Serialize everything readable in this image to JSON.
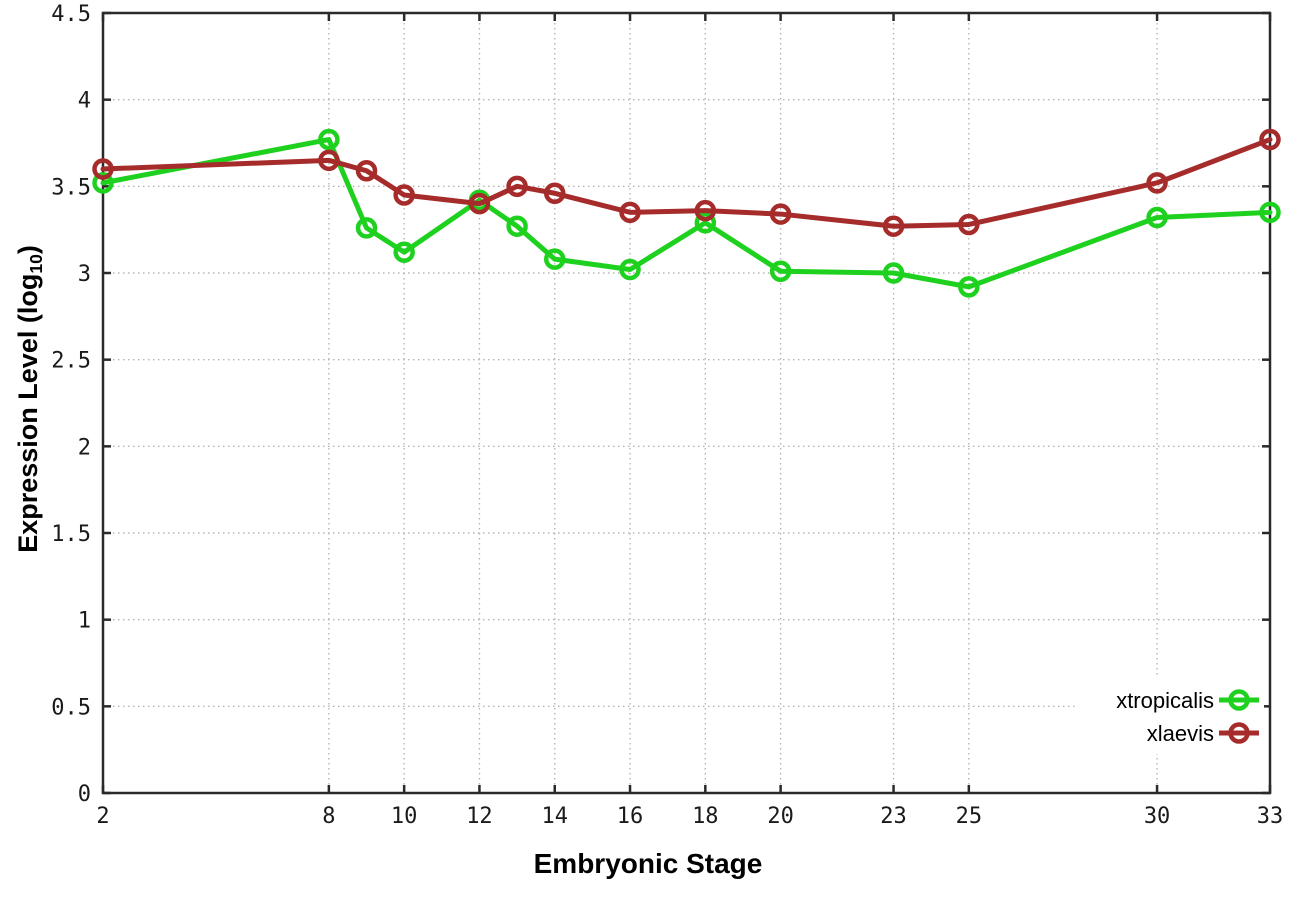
{
  "chart_data": {
    "type": "line",
    "title": "",
    "xlabel": "Embryonic Stage",
    "ylabel": "Expression Level (log10)",
    "ylabel_parts": {
      "prefix": "Expression Level (log",
      "sub": "10",
      "suffix": ")"
    },
    "x": [
      2,
      8,
      9,
      10,
      12,
      13,
      14,
      16,
      18,
      20,
      23,
      25,
      30,
      33
    ],
    "series": [
      {
        "name": "xtropicalis",
        "color": "#1fd11f",
        "values": [
          3.52,
          3.77,
          3.26,
          3.12,
          3.42,
          3.27,
          3.08,
          3.02,
          3.29,
          3.01,
          3.0,
          2.92,
          3.32,
          3.35
        ]
      },
      {
        "name": "xlaevis",
        "color": "#a62b2b",
        "values": [
          3.6,
          3.65,
          3.59,
          3.45,
          3.4,
          3.5,
          3.46,
          3.35,
          3.36,
          3.34,
          3.27,
          3.28,
          3.52,
          3.77
        ]
      }
    ],
    "x_ticks": [
      2,
      8,
      10,
      12,
      14,
      16,
      18,
      20,
      23,
      25,
      30,
      33
    ],
    "y_ticks": [
      0,
      0.5,
      1,
      1.5,
      2,
      2.5,
      3,
      3.5,
      4,
      4.5
    ],
    "xlim": [
      2,
      33
    ],
    "ylim": [
      0,
      4.5
    ],
    "grid": true,
    "legend_position": "bottom-right",
    "marker": "open-circle",
    "colors": {
      "border": "#2a2a2a",
      "grid": "#b5b5b5",
      "text": "#1a1a1a",
      "background": "#ffffff"
    }
  }
}
